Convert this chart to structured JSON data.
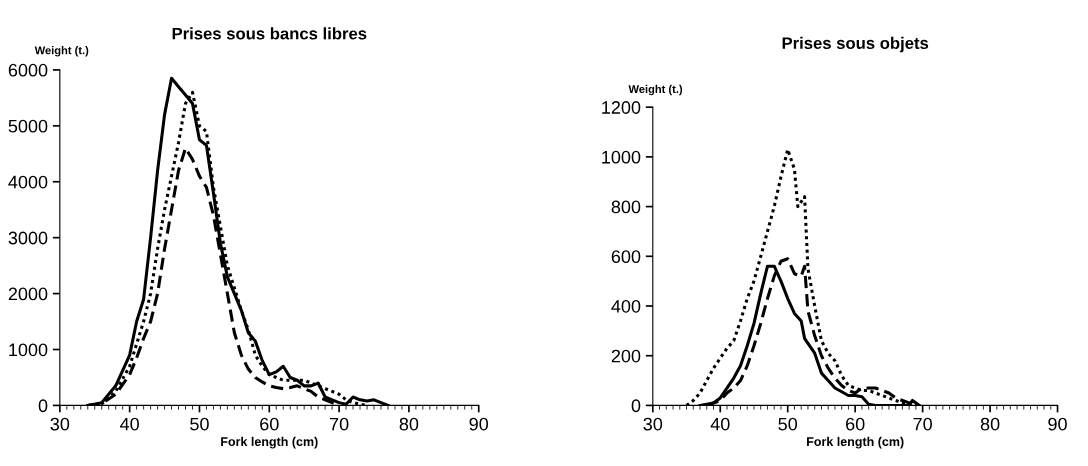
{
  "chart_data": [
    {
      "type": "line",
      "title": "Prises sous bancs libres",
      "xlabel": "Fork length (cm)",
      "ylabel": "Weight (t.)",
      "xlim": [
        30,
        90
      ],
      "xticks": [
        30,
        40,
        50,
        60,
        70,
        80,
        90
      ],
      "ylim": [
        0,
        6000
      ],
      "yticks": [
        0,
        1000,
        2000,
        3000,
        4000,
        5000,
        6000
      ],
      "grid": false,
      "legend": false,
      "marker": "none",
      "series": [
        {
          "color": "#000000",
          "line_style": "solid",
          "x": [
            34,
            36,
            38,
            40,
            41,
            42,
            43,
            44,
            45,
            46,
            47,
            48,
            49,
            50,
            51,
            52,
            53,
            54,
            55,
            56,
            57,
            58,
            59,
            60,
            61,
            62,
            63,
            64,
            65,
            66,
            67,
            68,
            69,
            70,
            71,
            72,
            73,
            74,
            75,
            76,
            77
          ],
          "values": [
            0,
            50,
            350,
            900,
            1500,
            1900,
            3000,
            4200,
            5200,
            5850,
            5700,
            5550,
            5400,
            4750,
            4650,
            3800,
            2900,
            2300,
            2000,
            1700,
            1300,
            1150,
            800,
            550,
            600,
            700,
            500,
            450,
            350,
            350,
            400,
            150,
            100,
            50,
            20,
            150,
            100,
            80,
            100,
            50,
            0
          ]
        },
        {
          "color": "#000000",
          "line_style": "dotted",
          "x": [
            34,
            36,
            38,
            40,
            41,
            42,
            43,
            44,
            45,
            46,
            47,
            48,
            49,
            50,
            51,
            52,
            53,
            54,
            55,
            56,
            57,
            58,
            59,
            60,
            61,
            62,
            63,
            64,
            65,
            66,
            67,
            68,
            69,
            70,
            71,
            72,
            73,
            74
          ],
          "values": [
            0,
            30,
            250,
            700,
            1100,
            1500,
            2000,
            2800,
            3500,
            4100,
            4700,
            5400,
            5600,
            5000,
            4900,
            3900,
            3200,
            2500,
            2100,
            1700,
            1350,
            900,
            700,
            550,
            500,
            450,
            450,
            450,
            450,
            400,
            350,
            300,
            250,
            200,
            100,
            50,
            20,
            0
          ]
        },
        {
          "color": "#000000",
          "line_style": "dashed",
          "x": [
            34,
            36,
            38,
            40,
            41,
            42,
            43,
            44,
            45,
            46,
            47,
            48,
            49,
            50,
            51,
            52,
            53,
            54,
            55,
            56,
            57,
            58,
            59,
            60,
            61,
            62,
            63,
            64,
            65,
            66,
            67,
            68,
            69,
            70
          ],
          "values": [
            0,
            30,
            200,
            550,
            850,
            1200,
            1500,
            2000,
            2800,
            3500,
            4200,
            4600,
            4400,
            4100,
            3900,
            3400,
            2700,
            2000,
            1300,
            900,
            650,
            500,
            420,
            350,
            320,
            300,
            320,
            350,
            300,
            250,
            150,
            100,
            50,
            0
          ]
        }
      ]
    },
    {
      "type": "line",
      "title": "Prises sous objets",
      "xlabel": "Fork length (cm)",
      "ylabel": "Weight (t.)",
      "xlim": [
        30,
        90
      ],
      "xticks": [
        30,
        40,
        50,
        60,
        70,
        80,
        90
      ],
      "ylim": [
        0,
        1200
      ],
      "yticks": [
        0,
        200,
        400,
        600,
        800,
        1000,
        1200
      ],
      "grid": false,
      "legend": false,
      "marker": "none",
      "series": [
        {
          "color": "#000000",
          "line_style": "solid",
          "x": [
            37,
            39,
            40,
            41,
            42,
            43,
            44,
            45,
            46,
            47,
            48,
            49,
            50,
            51,
            52,
            52.5,
            53,
            54,
            55,
            56,
            57,
            58,
            59,
            60,
            61,
            62,
            63,
            68,
            68.5,
            69.5
          ],
          "values": [
            0,
            10,
            30,
            70,
            110,
            160,
            240,
            330,
            450,
            560,
            560,
            500,
            430,
            370,
            340,
            270,
            250,
            210,
            130,
            100,
            70,
            55,
            40,
            40,
            35,
            5,
            0,
            0,
            20,
            0
          ]
        },
        {
          "color": "#000000",
          "line_style": "dotted",
          "x": [
            35,
            36,
            37,
            38,
            39,
            40,
            41,
            42,
            43,
            44,
            45,
            46,
            47,
            48,
            49,
            50,
            51,
            51.5,
            52.5,
            53,
            54,
            55,
            56,
            57,
            58,
            59,
            60,
            61,
            62,
            63,
            64,
            65,
            66,
            67,
            68,
            69
          ],
          "values": [
            0,
            20,
            50,
            100,
            150,
            190,
            230,
            260,
            340,
            430,
            500,
            600,
            700,
            800,
            920,
            1030,
            950,
            800,
            840,
            550,
            400,
            260,
            210,
            180,
            120,
            80,
            70,
            60,
            60,
            50,
            40,
            30,
            20,
            10,
            5,
            0
          ]
        },
        {
          "color": "#000000",
          "line_style": "dashed",
          "x": [
            38,
            40,
            41,
            42,
            43,
            44,
            45,
            46,
            47,
            48,
            49,
            50,
            51,
            52,
            52.5,
            53,
            54,
            55,
            56,
            57,
            58,
            59,
            60,
            61,
            62,
            63,
            64,
            65,
            66,
            67,
            68,
            69
          ],
          "values": [
            0,
            20,
            50,
            70,
            100,
            160,
            240,
            330,
            430,
            520,
            580,
            590,
            530,
            520,
            560,
            380,
            280,
            200,
            150,
            110,
            80,
            60,
            50,
            70,
            70,
            70,
            60,
            50,
            30,
            20,
            10,
            0
          ]
        }
      ]
    }
  ]
}
